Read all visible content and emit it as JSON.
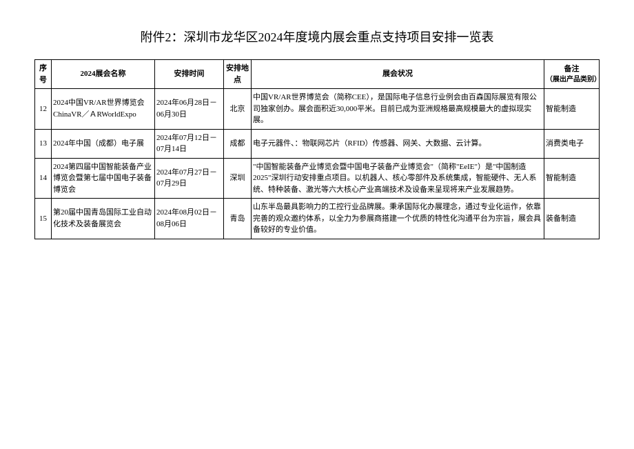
{
  "title": "附件2：深圳市龙华区2024年度境内展会重点支持项目安排一览表",
  "headers": {
    "seq": "序号",
    "name": "2024展会名称",
    "schedule": "安排时间",
    "location": "安排地点",
    "status": "展会状况",
    "remark": "备注",
    "remark_sub": "（展出产品类别）"
  },
  "rows": [
    {
      "seq": "12",
      "name": "2024中国VR/AR世界博览会ChinaVR／ＡRWorldExpo",
      "schedule": "2024年06月28日－06月30日",
      "location": "北京",
      "status": "中国VR/AR世界博览会（简称CEE），是国际电子信息行业例会由百森国际展览有限公司独家创办。展会面积近30,000平米。目前已成为亚洲规格最高规模最大的虚拟现实展。",
      "remark": "智能制造"
    },
    {
      "seq": "13",
      "name": "2024年中国（成都）电子展",
      "schedule": "2024年07月12日－07月14日",
      "location": "成都",
      "status": "电子元器件、：物联网芯片（RFID）传感器、网关、大数据、云计算。",
      "remark": "消费类电子"
    },
    {
      "seq": "14",
      "name": "2024第四届中国智能装备产业博览会暨第七届中国电子装备博览会",
      "schedule": "2024年07月27日－07月29日",
      "location": "深圳",
      "status": "\"中国智能装备产业博览会暨中国电子装备产业博览会\"（简称\"EeIE\"）是\"中国制造2025\"深圳行动安排重点项目。以机器人、核心零部件及系统集成，智能硬件、无人系统、特种装备、激光等六大核心产业高端技术及设备来呈现将来产业发展趋势。",
      "remark": "智能制造"
    },
    {
      "seq": "15",
      "name": "第20届中国青岛国际工业自动化技术及装备展览会",
      "schedule": "2024年08月02日－08月06日",
      "location": "青岛",
      "status": "山东半岛最具影响力的工控行业品牌展。秉承国际化办展理念，通过专业化运作，依靠完善的观众邀约体系，以全力为参展商搭建一个优质的特性化沟通平台为宗旨，展会具备较好的专业价值。",
      "remark": "装备制造"
    }
  ]
}
